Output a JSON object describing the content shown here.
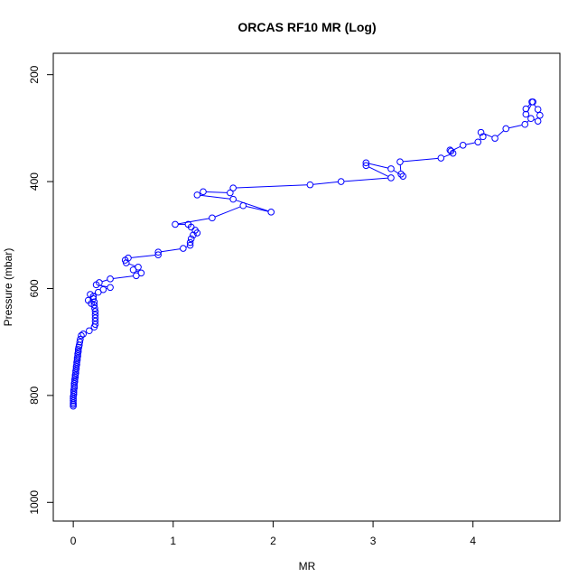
{
  "chart_data": {
    "type": "line",
    "title": "ORCAS RF10 MR (Log)",
    "xlabel": "MR",
    "ylabel": "Pressure (mbar)",
    "xlim": [
      -0.2,
      4.87
    ],
    "ylim": [
      1035,
      160
    ],
    "y_inverted": true,
    "xticks": [
      0,
      1,
      2,
      3,
      4
    ],
    "yticks": [
      200,
      400,
      600,
      800,
      1000
    ],
    "grid": false,
    "legend": "none",
    "series_color": "#0000ff",
    "marker": "open-circle",
    "series": [
      {
        "x": [
          0.0,
          0.0,
          0.0,
          0.0,
          0.0,
          0.0,
          0.005,
          0.005,
          0.005,
          0.01,
          0.01,
          0.01,
          0.015,
          0.015,
          0.02,
          0.02,
          0.025,
          0.025,
          0.03,
          0.03,
          0.035,
          0.035,
          0.04,
          0.04,
          0.045,
          0.045,
          0.05,
          0.05,
          0.055,
          0.06,
          0.065,
          0.07,
          0.08,
          0.1,
          0.16,
          0.21,
          0.22,
          0.22,
          0.22,
          0.22,
          0.22,
          0.215,
          0.21,
          0.21,
          0.2,
          0.2,
          0.15,
          0.18,
          0.17,
          0.25,
          0.3,
          0.37,
          0.23,
          0.26,
          0.37,
          0.63,
          0.68,
          0.6,
          0.65,
          0.53,
          0.52,
          0.55,
          0.85,
          0.85,
          1.1,
          1.17,
          1.17,
          1.18,
          1.2,
          1.24,
          1.22,
          1.18,
          1.15,
          1.02,
          1.39,
          1.7,
          1.98,
          1.6,
          1.24,
          1.3,
          1.57,
          1.6,
          2.37,
          2.68,
          3.18,
          2.93,
          2.93,
          3.18,
          3.3,
          3.28,
          3.27,
          3.68,
          3.8,
          3.77,
          3.78,
          3.9,
          4.05,
          4.1,
          4.08,
          4.22,
          4.33,
          4.52,
          4.58,
          4.65,
          4.67,
          4.65,
          4.59,
          4.53,
          4.53,
          4.6
        ],
        "y": [
          820,
          817,
          814,
          810,
          806,
          802,
          798,
          794,
          790,
          786,
          782,
          778,
          774,
          770,
          766,
          762,
          758,
          754,
          750,
          746,
          742,
          738,
          734,
          730,
          726,
          722,
          718,
          714,
          710,
          706,
          700,
          695,
          688,
          685,
          679,
          672,
          667,
          661,
          655,
          649,
          643,
          637,
          631,
          625,
          619,
          615,
          622,
          628,
          611,
          607,
          602,
          598,
          593,
          589,
          582,
          576,
          571,
          565,
          560,
          552,
          547,
          543,
          537,
          532,
          525,
          519,
          514,
          507,
          500,
          496,
          491,
          485,
          480,
          480,
          468,
          445,
          457,
          433,
          425,
          419,
          421,
          412,
          406,
          400,
          393,
          370,
          365,
          376,
          390,
          386,
          363,
          356,
          347,
          341,
          343,
          332,
          326,
          316,
          308,
          319,
          301,
          293,
          282,
          287,
          276,
          265,
          251,
          264,
          274,
          251
        ]
      }
    ]
  }
}
